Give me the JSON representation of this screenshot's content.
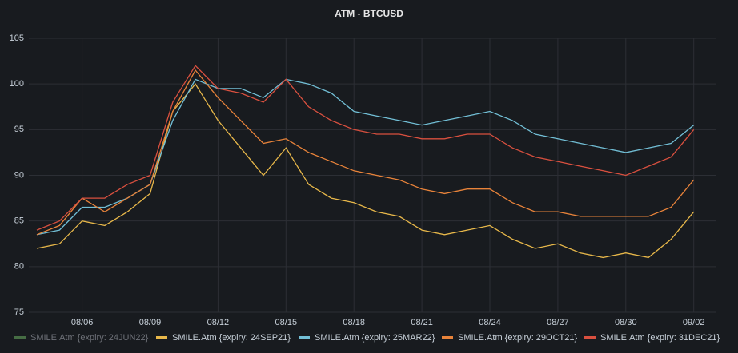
{
  "chart_data": {
    "type": "line",
    "title": "ATM - BTCUSD",
    "x": [
      "08/04",
      "08/05",
      "08/06",
      "08/07",
      "08/08",
      "08/09",
      "08/10",
      "08/11",
      "08/12",
      "08/13",
      "08/14",
      "08/15",
      "08/16",
      "08/17",
      "08/18",
      "08/19",
      "08/20",
      "08/21",
      "08/22",
      "08/23",
      "08/24",
      "08/25",
      "08/26",
      "08/27",
      "08/28",
      "08/29",
      "08/30",
      "08/31",
      "09/01",
      "09/02"
    ],
    "xticks": [
      "08/06",
      "08/09",
      "08/12",
      "08/15",
      "08/18",
      "08/21",
      "08/24",
      "08/27",
      "08/30",
      "09/02"
    ],
    "ylim": [
      75,
      105
    ],
    "yticks": [
      75,
      80,
      85,
      90,
      95,
      100,
      105
    ],
    "grid": true,
    "legend": "bottom",
    "series": [
      {
        "name": "SMILE.Atm {expiry: 24JUN22}",
        "color": "#73bf69",
        "hidden": true,
        "values": [
          null,
          null,
          null,
          null,
          null,
          null,
          null,
          null,
          null,
          null,
          null,
          null,
          null,
          null,
          null,
          null,
          null,
          null,
          null,
          null,
          null,
          null,
          null,
          null,
          null,
          null,
          null,
          null,
          null,
          null
        ]
      },
      {
        "name": "SMILE.Atm {expiry: 24SEP21}",
        "color": "#e8b84a",
        "values": [
          82,
          82.5,
          85,
          84.5,
          86,
          88,
          97,
          100,
          96,
          93,
          90,
          93,
          89,
          87.5,
          87,
          86,
          85.5,
          84,
          83.5,
          84,
          84.5,
          83,
          82,
          82.5,
          81.5,
          81,
          81.5,
          81,
          83,
          86
        ]
      },
      {
        "name": "SMILE.Atm {expiry: 25MAR22}",
        "color": "#72bfd6",
        "values": [
          83.5,
          84,
          86.5,
          86.5,
          87.5,
          89,
          96,
          100.5,
          99.5,
          99.5,
          98.5,
          100.5,
          100,
          99,
          97,
          96.5,
          96,
          95.5,
          96,
          96.5,
          97,
          96,
          94.5,
          94,
          93.5,
          93,
          92.5,
          93,
          93.5,
          95.5
        ]
      },
      {
        "name": "SMILE.Atm {expiry: 29OCT21}",
        "color": "#e8833a",
        "values": [
          83.5,
          84.5,
          87.5,
          86,
          87.5,
          89,
          97,
          101.5,
          98.5,
          96,
          93.5,
          94,
          92.5,
          91.5,
          90.5,
          90,
          89.5,
          88.5,
          88,
          88.5,
          88.5,
          87,
          86,
          86,
          85.5,
          85.5,
          85.5,
          85.5,
          86.5,
          89.5
        ]
      },
      {
        "name": "SMILE.Atm {expiry: 31DEC21}",
        "color": "#d9503f",
        "values": [
          84,
          85,
          87.5,
          87.5,
          89,
          90,
          98,
          102,
          99.5,
          99,
          98,
          100.5,
          97.5,
          96,
          95,
          94.5,
          94.5,
          94,
          94,
          94.5,
          94.5,
          93,
          92,
          91.5,
          91,
          90.5,
          90,
          91,
          92,
          95
        ]
      }
    ]
  }
}
